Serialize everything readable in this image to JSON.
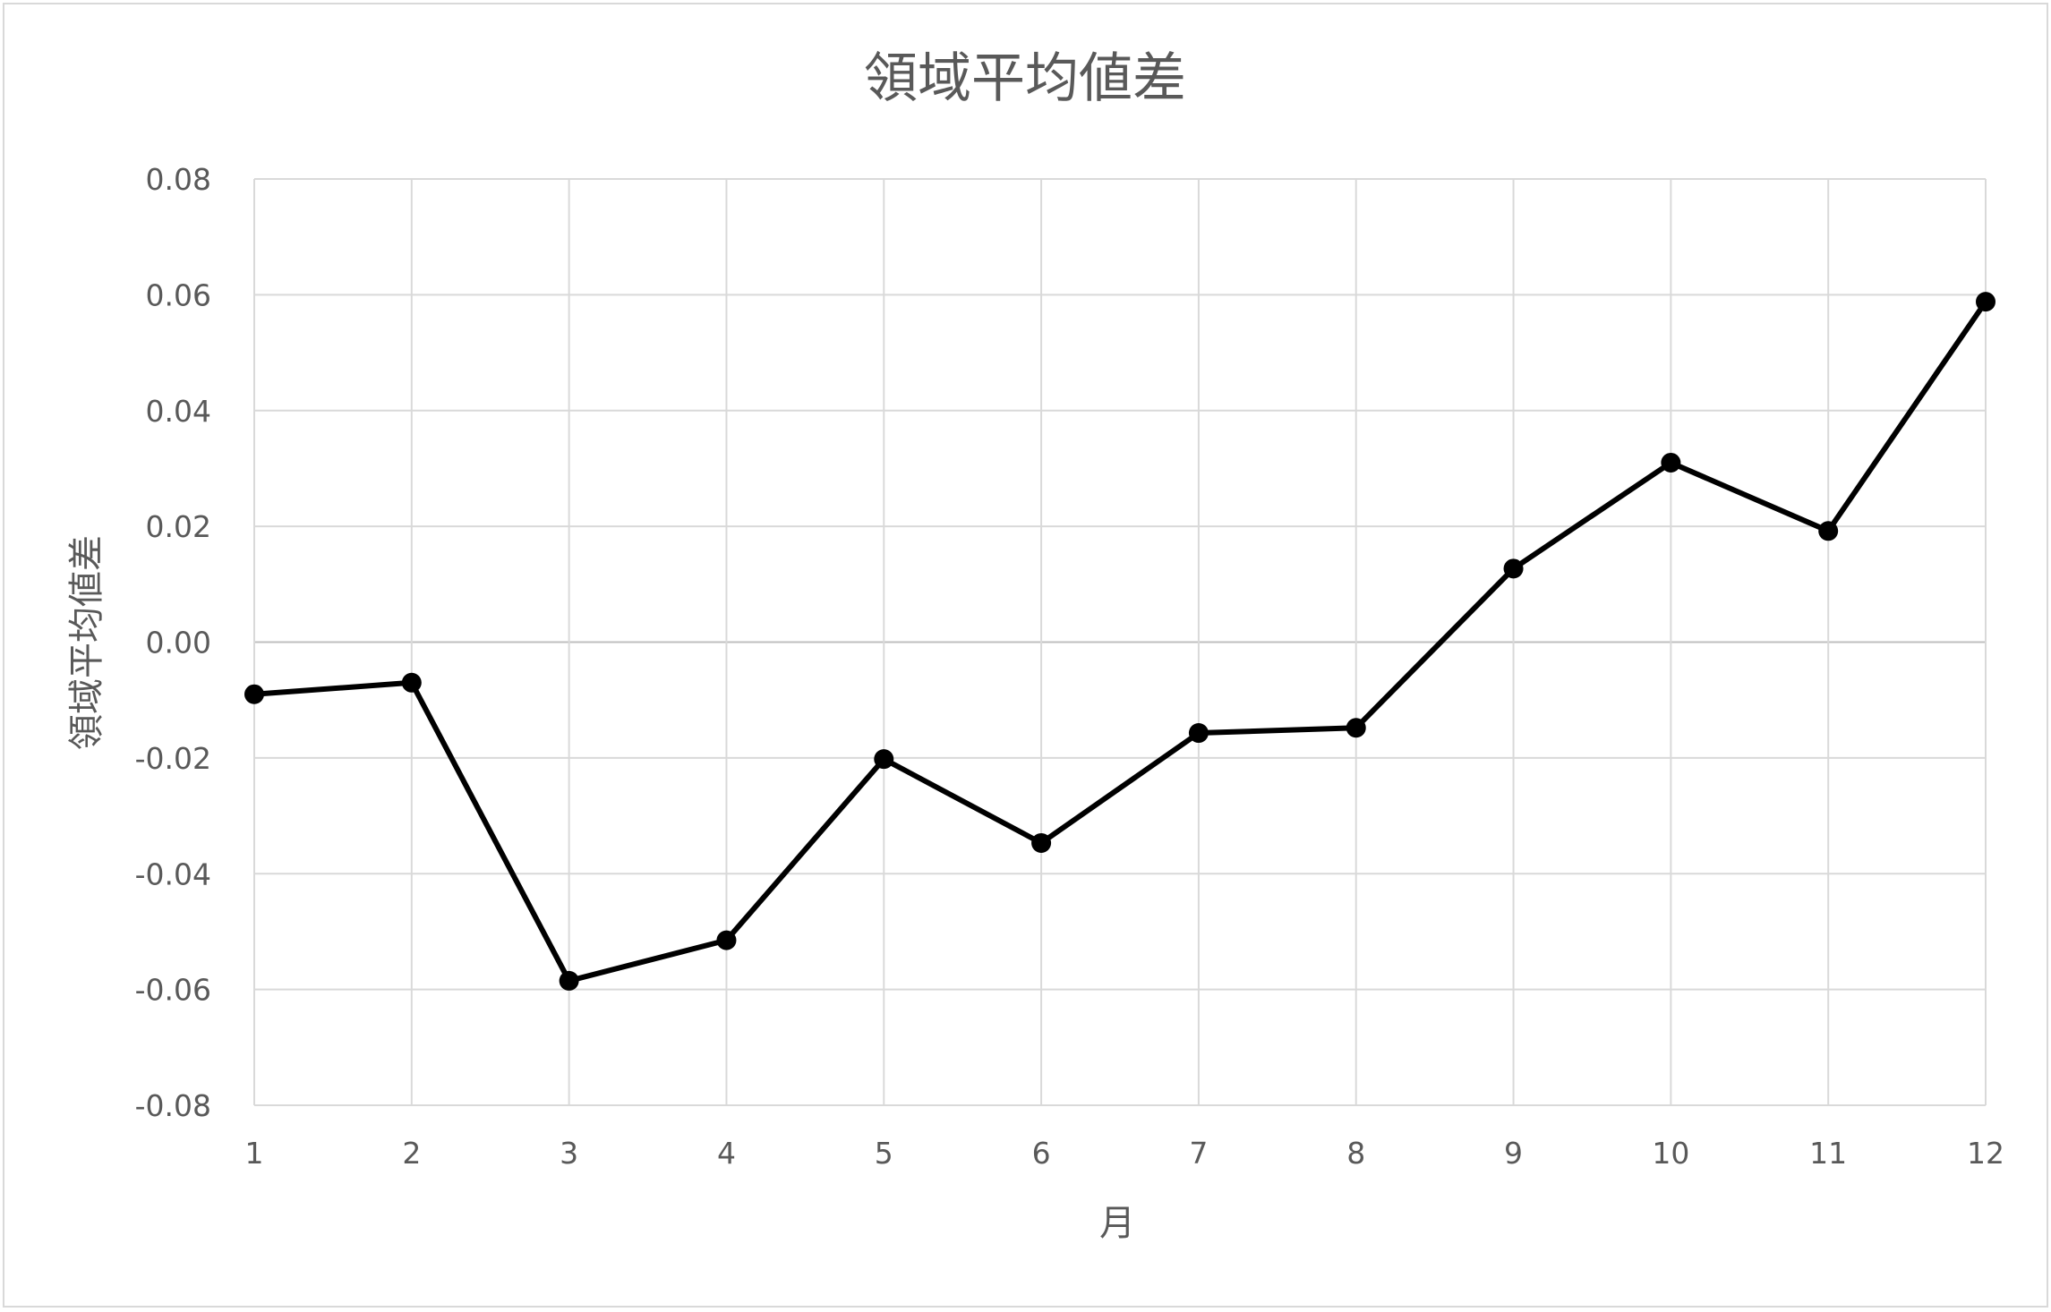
{
  "chart_data": {
    "type": "line",
    "title": "領域平均値差",
    "xlabel": "月",
    "ylabel": "領域平均値差",
    "categories": [
      "1",
      "2",
      "3",
      "4",
      "5",
      "6",
      "7",
      "8",
      "9",
      "10",
      "11",
      "12"
    ],
    "series": [
      {
        "values": [
          -0.009,
          -0.007,
          -0.0585,
          -0.0515,
          -0.0202,
          -0.0347,
          -0.0157,
          -0.0148,
          0.0127,
          0.031,
          0.0192,
          0.0588
        ],
        "color": "#000000"
      }
    ],
    "ylim": [
      -0.08,
      0.08
    ],
    "yticks": [
      "0.08",
      "0.06",
      "0.04",
      "0.02",
      "0.00",
      "-0.02",
      "-0.04",
      "-0.06",
      "-0.08"
    ],
    "grid": true,
    "legend": "none"
  }
}
